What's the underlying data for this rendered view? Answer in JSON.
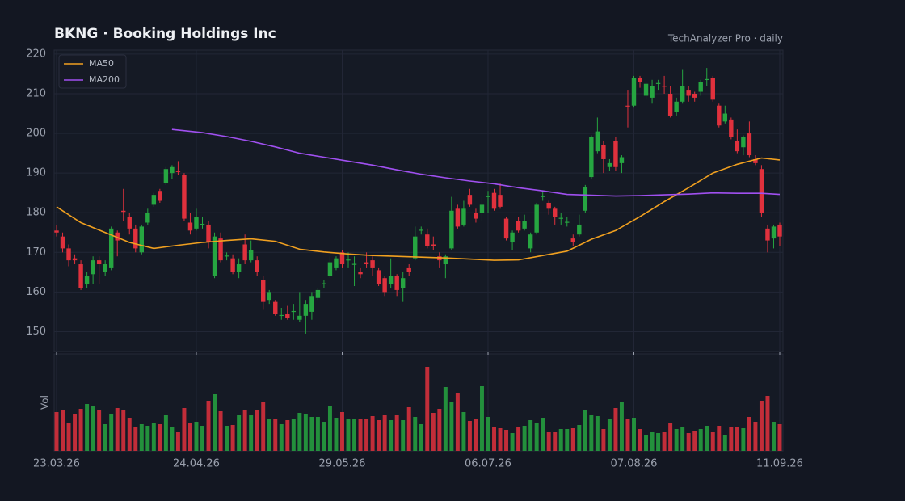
{
  "chart_data": {
    "type": "candlestick",
    "title": "BKNG  ·  Booking Holdings Inc",
    "subtitle": "TechAnalyzer Pro · daily",
    "up_color": "#26a641",
    "down_color": "#e0313d",
    "grid": true,
    "legend": "upper left",
    "xlim": [
      0,
      119
    ],
    "xticks": [
      {
        "value": 0,
        "label": "23.03.26"
      },
      {
        "value": 23,
        "label": "24.04.26"
      },
      {
        "value": 47,
        "label": "29.05.26"
      },
      {
        "value": 71,
        "label": "06.07.26"
      },
      {
        "value": 95,
        "label": "07.08.26"
      },
      {
        "value": 119,
        "label": "11.09.26"
      }
    ],
    "ylim": [
      145,
      221
    ],
    "yticks": [
      150,
      160,
      170,
      180,
      190,
      200,
      210,
      220
    ],
    "open": [
      175.5,
      174,
      171,
      168.5,
      167,
      162,
      164.5,
      168,
      165,
      166,
      175,
      180.5,
      179,
      176,
      170,
      177.5,
      182,
      185.5,
      187.5,
      190,
      190.5,
      189.5,
      177.5,
      176,
      177,
      177,
      164,
      173.5,
      169,
      168.5,
      165,
      172,
      168,
      168,
      163,
      158,
      157.5,
      154,
      154.5,
      155,
      153,
      154,
      155,
      158.5,
      162,
      164,
      166,
      170,
      168,
      167,
      165,
      167.5,
      168,
      165.5,
      163.5,
      162,
      164,
      161,
      166,
      168.5,
      175.5,
      174.5,
      172,
      169,
      167,
      171,
      181,
      177,
      184.5,
      180,
      180,
      184,
      185,
      184.5,
      178.5,
      172.5,
      178,
      176,
      171,
      175,
      184,
      182.5,
      181,
      178.5,
      177.5,
      173.5,
      174.5,
      180.5,
      189,
      195.5,
      197,
      191.5,
      198,
      192.5,
      207,
      207,
      214,
      209.5,
      209,
      212.5,
      212,
      210,
      205.5,
      208,
      211,
      210,
      210.5,
      213.5,
      214,
      207,
      203,
      203.5,
      198,
      196.5,
      200,
      193.5,
      191,
      176,
      173.5,
      177
    ],
    "high": [
      177,
      175,
      172,
      169.5,
      168,
      165,
      169,
      169,
      168,
      176.5,
      175.5,
      186,
      180,
      177,
      177,
      181,
      185,
      186,
      191.5,
      192,
      193,
      190,
      180,
      181,
      179,
      178,
      175,
      175,
      170,
      169.5,
      168.5,
      174.5,
      173,
      169,
      164,
      160.5,
      158,
      156,
      156.5,
      157,
      160,
      158,
      160,
      161,
      163,
      169,
      169,
      170.5,
      170,
      169,
      166,
      170,
      169,
      166,
      164,
      168.5,
      164.5,
      165,
      167,
      176.5,
      176.5,
      176,
      174,
      170,
      169.5,
      184,
      182,
      183,
      186,
      181,
      184,
      185.5,
      186,
      187.5,
      179,
      175.5,
      179,
      179.5,
      175,
      182.5,
      185.5,
      183,
      181.5,
      180,
      179,
      174.5,
      179.5,
      187,
      199.5,
      204,
      198,
      193.5,
      199,
      194.5,
      211,
      214.5,
      214.5,
      213,
      213.5,
      213.5,
      214.5,
      212,
      209,
      216,
      212,
      210.5,
      213.5,
      216.5,
      214.5,
      207.5,
      207,
      204,
      201,
      199.5,
      203,
      194.5,
      192,
      177,
      177,
      177.5
    ],
    "low": [
      174,
      170,
      166.5,
      167,
      160.5,
      161,
      162,
      162,
      164,
      165.5,
      169,
      178,
      174.5,
      170,
      169.5,
      177,
      181.5,
      182.5,
      187,
      188.5,
      189.5,
      178,
      174.5,
      175.5,
      176,
      171,
      163.5,
      167.5,
      168,
      164.5,
      163.5,
      167,
      167.5,
      164,
      155.5,
      157,
      154,
      153,
      153,
      153,
      152.5,
      149.5,
      153,
      158,
      161,
      163.5,
      165.5,
      166,
      166,
      161.5,
      163.5,
      166,
      164,
      161.5,
      159,
      161,
      159,
      157.5,
      164,
      168,
      174.5,
      171,
      170.5,
      166,
      163.5,
      170.5,
      176,
      176.5,
      181.5,
      177.5,
      178,
      180,
      180.5,
      181,
      173,
      170.5,
      175,
      175.5,
      170,
      174.5,
      183,
      179.5,
      177,
      177,
      176.5,
      171.5,
      174,
      180,
      188.5,
      195,
      190,
      190.5,
      190.5,
      190,
      201.5,
      206.5,
      211.5,
      208.5,
      207.5,
      211,
      210,
      204,
      204.5,
      207.5,
      208,
      208,
      209.5,
      212,
      208,
      201.5,
      202.5,
      198.5,
      195,
      194.5,
      194,
      192,
      179,
      170,
      171,
      171.5
    ],
    "close": [
      175,
      171,
      168,
      168,
      161,
      164,
      168,
      167,
      167,
      176,
      173,
      180.2,
      176,
      171,
      176.5,
      180,
      184.5,
      183,
      191,
      191.5,
      190.3,
      178.5,
      175.5,
      179,
      177.2,
      172.5,
      174,
      168,
      169.2,
      165,
      167,
      168,
      170.5,
      165,
      157.5,
      160,
      154.5,
      154.2,
      153.5,
      155.2,
      154,
      157,
      159,
      160.5,
      162.2,
      167.5,
      168.5,
      167,
      168.2,
      167.1,
      164.5,
      167,
      166,
      162,
      160,
      164,
      160.5,
      163.5,
      165,
      174,
      175.7,
      171.5,
      171.5,
      168,
      169,
      180.5,
      176.5,
      181,
      182,
      178.5,
      182,
      184.2,
      181,
      181.5,
      173.5,
      175,
      175.5,
      178,
      174.5,
      182,
      184.2,
      181,
      179,
      178.7,
      177.7,
      172.5,
      177,
      186.5,
      199,
      200.5,
      193.5,
      192.5,
      191.5,
      194,
      206.8,
      214,
      213,
      212.5,
      212,
      212.7,
      211.8,
      204.5,
      208,
      212,
      209.5,
      209,
      213,
      213.7,
      208.5,
      202,
      205,
      199,
      195.5,
      199,
      194.5,
      192.5,
      180,
      173,
      176.5,
      174
    ],
    "volume_label": "Vol",
    "vlim": [
      0,
      120
    ],
    "volume": [
      48,
      50,
      35,
      46,
      52,
      58,
      55,
      50,
      33,
      46,
      53,
      50,
      41,
      29,
      33,
      31,
      35,
      33,
      45,
      30,
      24,
      53,
      34,
      36,
      31,
      62,
      70,
      49,
      31,
      32,
      45,
      50,
      45,
      50,
      60,
      40,
      40,
      33,
      38,
      40,
      47,
      46,
      42,
      42,
      36,
      56,
      41,
      48,
      39,
      40,
      40,
      39,
      43,
      38,
      45,
      38,
      45,
      38,
      54,
      42,
      33,
      104,
      47,
      52,
      79,
      60,
      72,
      48,
      37,
      40,
      80,
      42,
      29,
      28,
      26,
      22,
      29,
      31,
      38,
      34,
      41,
      23,
      23,
      27,
      27,
      28,
      32,
      51,
      45,
      43,
      27,
      40,
      53,
      60,
      40,
      41,
      27,
      20,
      23,
      22,
      23,
      34,
      27,
      29,
      22,
      25,
      27,
      31,
      24,
      31,
      20,
      29,
      30,
      28,
      42,
      36,
      62,
      68,
      36,
      33
    ],
    "lines": [
      {
        "name": "MA50",
        "color": "#f0a020",
        "x": [
          0,
          4,
          8,
          12,
          16,
          20,
          24,
          28,
          32,
          36,
          40,
          44,
          48,
          52,
          56,
          60,
          64,
          68,
          72,
          76,
          80,
          84,
          88,
          92,
          96,
          100,
          104,
          108,
          112,
          116,
          119
        ],
        "values": [
          181.5,
          177.5,
          175,
          172.5,
          171,
          171.8,
          172.5,
          173,
          173.4,
          172.8,
          170.8,
          170.1,
          169.6,
          169.2,
          169,
          168.8,
          168.6,
          168.3,
          168,
          168.1,
          169.2,
          170.3,
          173.3,
          175.5,
          179,
          182.8,
          186.3,
          190,
          192.2,
          193.8,
          193.3
        ]
      },
      {
        "name": "MA200",
        "color": "#a050f0",
        "x": [
          19,
          24,
          28,
          32,
          36,
          40,
          44,
          48,
          52,
          56,
          60,
          64,
          68,
          72,
          76,
          80,
          84,
          88,
          92,
          96,
          100,
          104,
          108,
          112,
          116,
          119
        ],
        "values": [
          201,
          200.2,
          199.2,
          198,
          196.6,
          195,
          194,
          193,
          192,
          190.8,
          189.7,
          188.8,
          188,
          187.3,
          186.3,
          185.5,
          184.6,
          184.4,
          184.2,
          184.3,
          184.5,
          184.7,
          185,
          184.9,
          184.9,
          184.6
        ]
      }
    ]
  }
}
